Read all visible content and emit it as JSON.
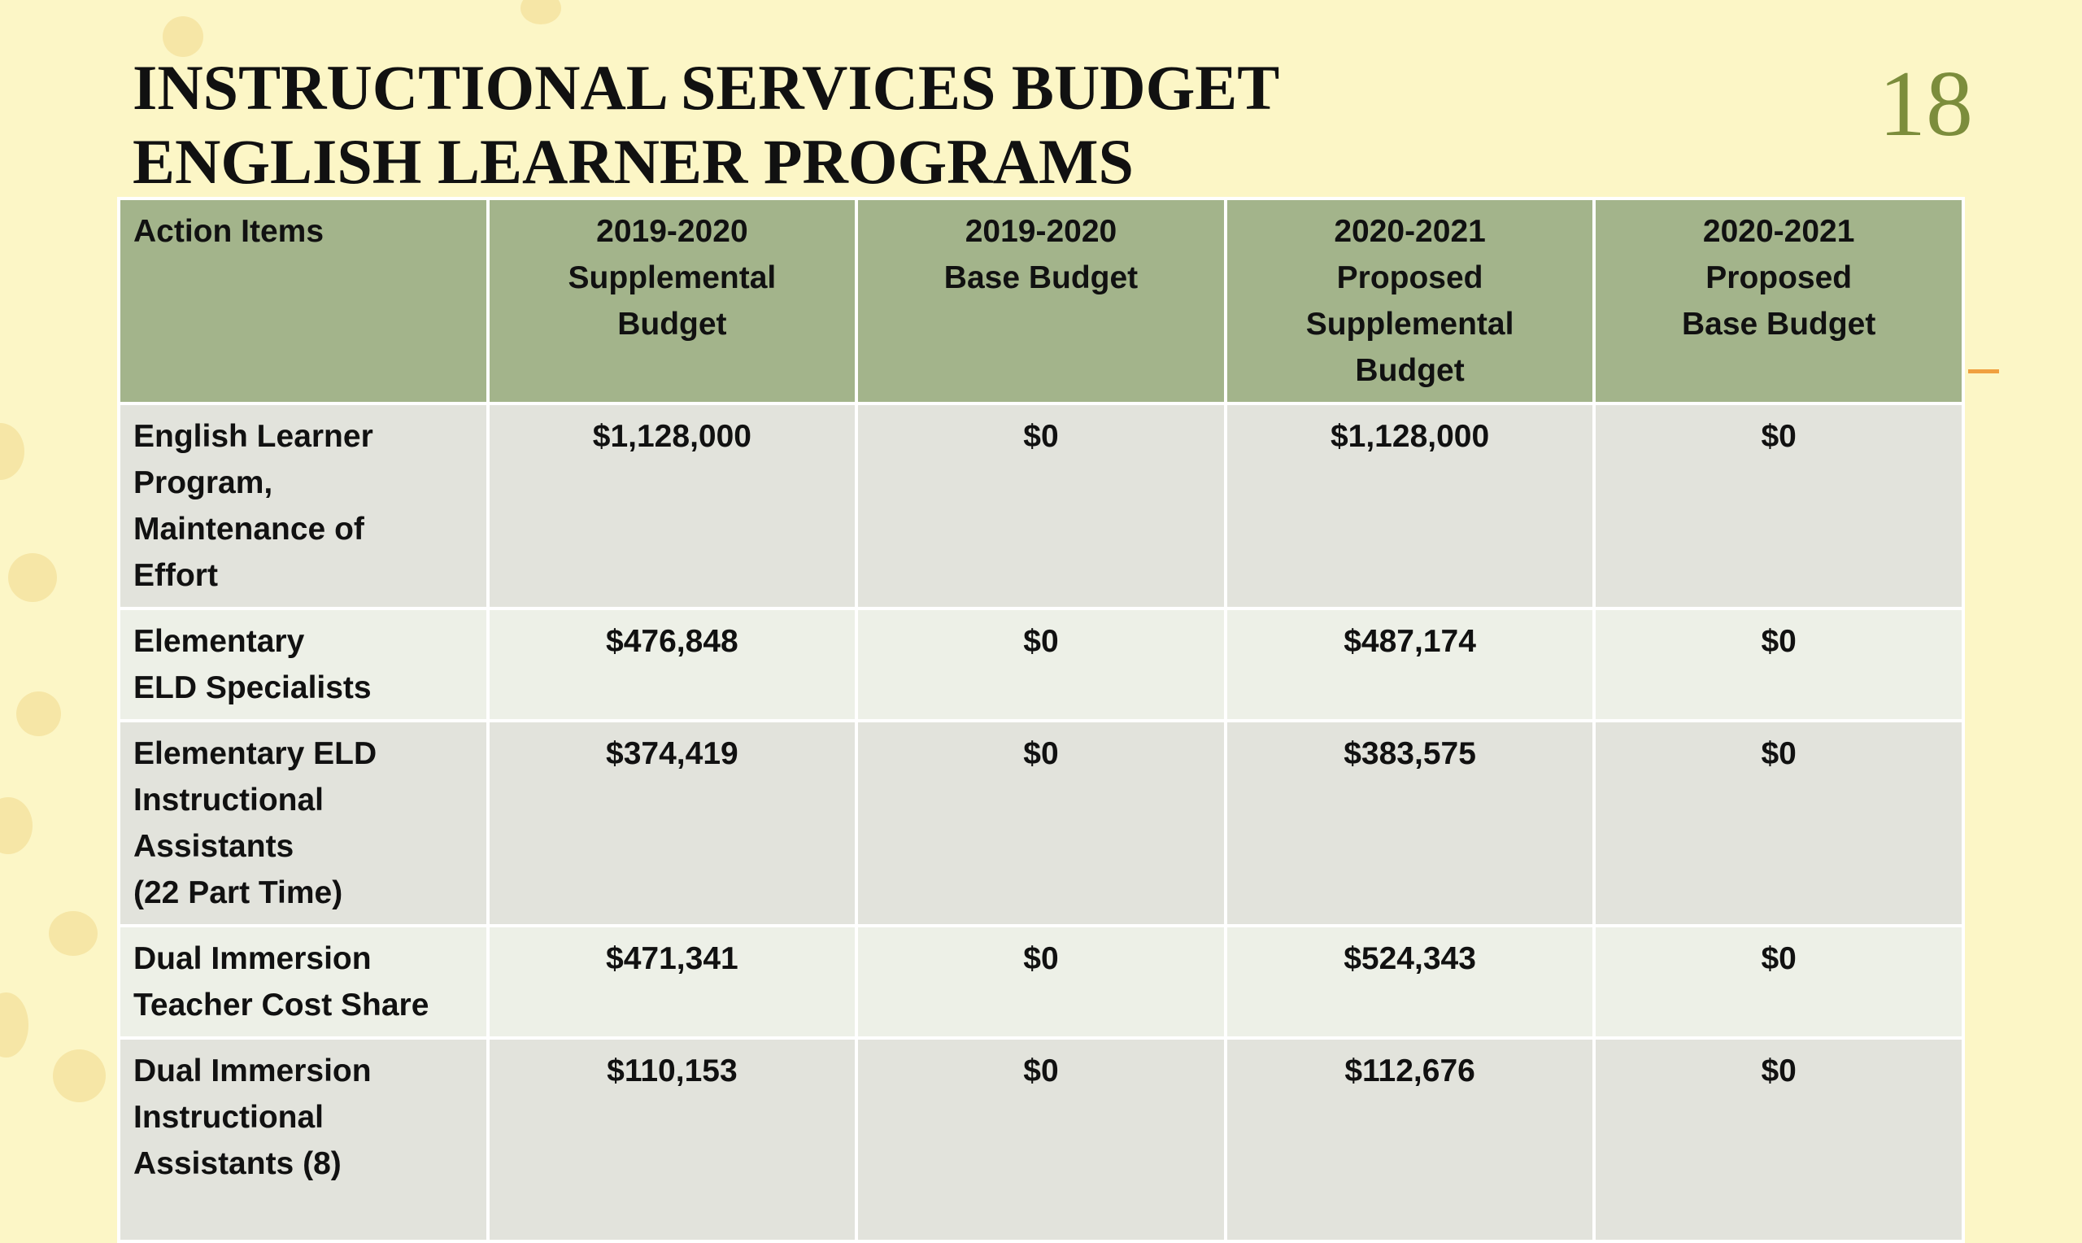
{
  "header": {
    "title_lines": [
      "INSTRUCTIONAL SERVICES BUDGET",
      "ENGLISH LEARNER PROGRAMS"
    ],
    "page_number": "18"
  },
  "table": {
    "columns": [
      "Action Items",
      "2019-2020\nSupplemental\nBudget",
      "2019-2020\nBase Budget",
      "2020-2021\nProposed\nSupplemental\nBudget",
      "2020-2021\nProposed\nBase Budget"
    ],
    "rows": [
      [
        "English Learner\nProgram,\nMaintenance of\nEffort",
        "$1,128,000",
        "$0",
        "$1,128,000",
        "$0"
      ],
      [
        "Elementary\nELD Specialists",
        "$476,848",
        "$0",
        "$487,174",
        "$0"
      ],
      [
        "Elementary ELD\nInstructional\nAssistants\n(22 Part Time)",
        "$374,419",
        "$0",
        "$383,575",
        "$0"
      ],
      [
        "Dual Immersion\nTeacher Cost Share",
        "$471,341",
        "$0",
        "$524,343",
        "$0"
      ],
      [
        "Dual Immersion\nInstructional\nAssistants (8)",
        "$110,153",
        "$0",
        "$112,676",
        "$0"
      ]
    ]
  }
}
